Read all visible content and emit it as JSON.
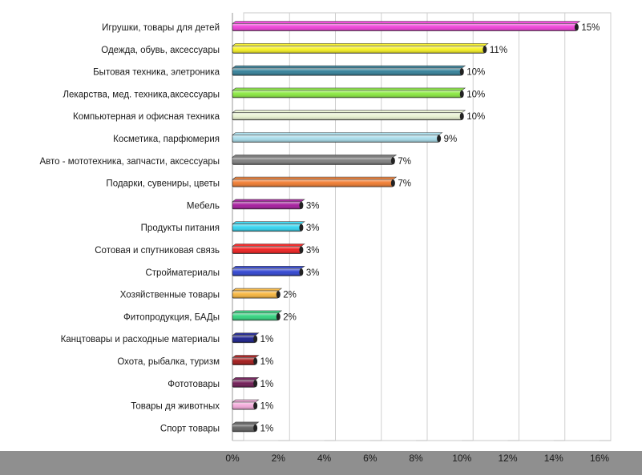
{
  "chart_data": {
    "type": "bar",
    "orientation": "horizontal",
    "title": "",
    "xlabel": "",
    "ylabel": "",
    "xlim": [
      0,
      16
    ],
    "x_ticks": [
      "0%",
      "2%",
      "4%",
      "6%",
      "8%",
      "10%",
      "12%",
      "14%",
      "16%"
    ],
    "grid": "vertical",
    "categories": [
      "Игрушки, товары для детей",
      "Одежда, обувь, аксессуары",
      "Бытовая техника, элетроника",
      "Лекарства, мед. техника,аксессуары",
      "Компьютерная и офисная техника",
      "Косметика, парфюмерия",
      "Авто - мототехника, запчасти, аксессуары",
      "Подарки, сувениры, цветы",
      "Мебель",
      "Продукты питания",
      "Сотовая  и спутниковая связь",
      "Стройматериалы",
      "Хозяйственные товары",
      "Фитопродукция, БАДы",
      "Канцтовары и расходные материалы",
      "Охота, рыбалка, туризм",
      "Фототовары",
      "Товары дя животных",
      "Спорт товары"
    ],
    "values": [
      15,
      11,
      10,
      10,
      10,
      9,
      7,
      7,
      3,
      3,
      3,
      3,
      2,
      2,
      1,
      1,
      1,
      1,
      1
    ],
    "value_labels": [
      "15%",
      "11%",
      "10%",
      "10%",
      "10%",
      "9%",
      "7%",
      "7%",
      "3%",
      "3%",
      "3%",
      "3%",
      "2%",
      "2%",
      "1%",
      "1%",
      "1%",
      "1%",
      "1%"
    ],
    "colors": [
      "#ee3bd6",
      "#f7f11c",
      "#2e7d96",
      "#86e83a",
      "#e8f2d0",
      "#a6dcea",
      "#7c7c7c",
      "#f0782a",
      "#a3169b",
      "#2ed4f0",
      "#f01a1a",
      "#2a3fd0",
      "#f7b43a",
      "#2bd27a",
      "#141a8a",
      "#a01212",
      "#6b1450",
      "#f2a6d8",
      "#5e5e5e"
    ]
  }
}
